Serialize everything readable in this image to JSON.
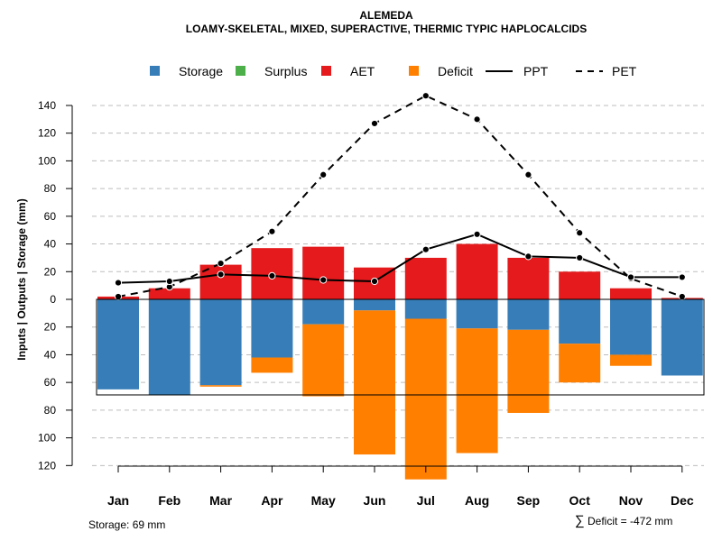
{
  "chart_data": {
    "type": "bar",
    "title": "ALEMEDA",
    "subtitle": "LOAMY-SKELETAL, MIXED, SUPERACTIVE, THERMIC TYPIC HAPLOCALCIDS",
    "ylabel": "Inputs | Outputs | Storage    (mm)",
    "ylim": [
      -125,
      150
    ],
    "yticks": [
      140,
      120,
      100,
      80,
      60,
      40,
      20,
      0,
      -20,
      -40,
      -60,
      -80,
      -100,
      -120
    ],
    "ytick_labels": [
      "140",
      "120",
      "100",
      "80",
      "60",
      "40",
      "20",
      "0",
      "20",
      "40",
      "60",
      "80",
      "100",
      "120"
    ],
    "categories": [
      "Jan",
      "Feb",
      "Mar",
      "Apr",
      "May",
      "Jun",
      "Jul",
      "Aug",
      "Sep",
      "Oct",
      "Nov",
      "Dec"
    ],
    "series": [
      {
        "name": "Storage",
        "color": "#377eb8",
        "values": [
          -65,
          -69,
          -62,
          -42,
          -18,
          -8,
          -14,
          -21,
          -22,
          -32,
          -40,
          -55
        ]
      },
      {
        "name": "Surplus",
        "color": "#4daf4a",
        "values": [
          0,
          0,
          0,
          0,
          0,
          0,
          0,
          0,
          0,
          0,
          0,
          0
        ]
      },
      {
        "name": "AET",
        "color": "#e41a1c",
        "values": [
          2,
          8,
          25,
          37,
          38,
          23,
          30,
          40,
          30,
          20,
          8,
          1
        ]
      },
      {
        "name": "Deficit",
        "color": "#ff7f00",
        "values": [
          0,
          0,
          1,
          11,
          52,
          104,
          116,
          90,
          60,
          28,
          8,
          0
        ]
      },
      {
        "name": "PPT",
        "color": "#000000",
        "style": "solid",
        "values": [
          12,
          13,
          18,
          17,
          14,
          13,
          36,
          47,
          31,
          30,
          16,
          16
        ]
      },
      {
        "name": "PET",
        "color": "#000000",
        "style": "dashed",
        "values": [
          2,
          9,
          26,
          49,
          90,
          127,
          147,
          130,
          90,
          48,
          15,
          2
        ]
      }
    ],
    "storage_capacity": 69,
    "grid": true,
    "legend_position": "top"
  },
  "annotations": {
    "storage": "Storage: 69 mm",
    "deficit_symbol": "∑",
    "deficit": "Deficit = -472 mm"
  }
}
